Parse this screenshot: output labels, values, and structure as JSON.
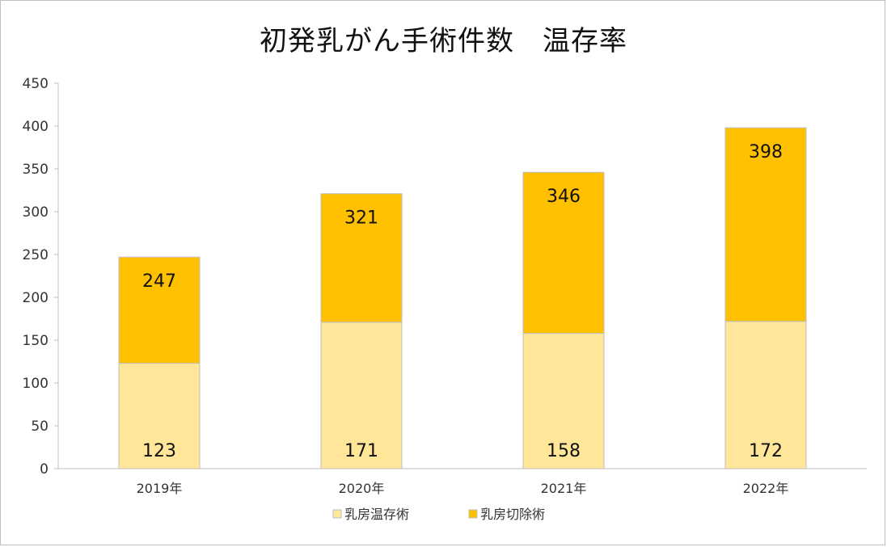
{
  "chart_data": {
    "type": "bar",
    "stacked": true,
    "title": "初発乳がん手術件数　温存率",
    "categories": [
      "2019年",
      "2020年",
      "2021年",
      "2022年"
    ],
    "series": [
      {
        "name": "乳房温存術",
        "values": [
          123,
          171,
          158,
          172
        ],
        "color": "#FFE699"
      },
      {
        "name": "乳房切除術",
        "values": [
          124,
          150,
          188,
          226
        ],
        "color": "#FFC000"
      }
    ],
    "data_labels": {
      "bottom": [
        "123",
        "171",
        "158",
        "172"
      ],
      "top": [
        "247",
        "321",
        "346",
        "398"
      ]
    },
    "ylim": [
      0,
      450
    ],
    "yticks": [
      0,
      50,
      100,
      150,
      200,
      250,
      300,
      350,
      400,
      450
    ],
    "grid": false,
    "legend_position": "bottom"
  }
}
